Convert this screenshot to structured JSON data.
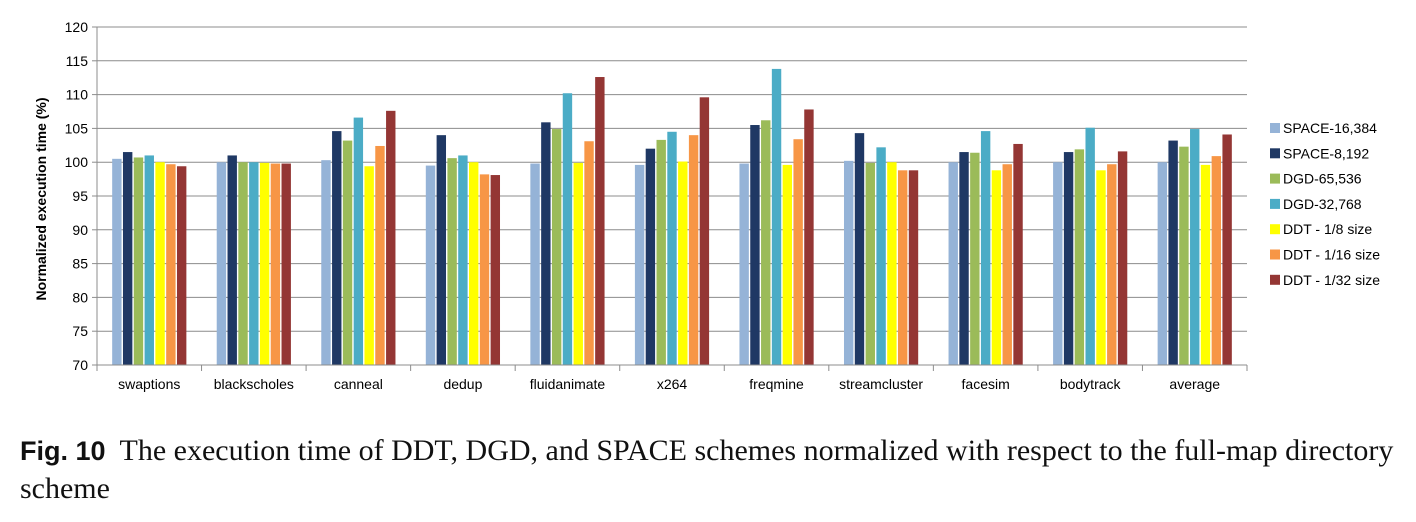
{
  "chart_data": {
    "type": "bar",
    "title": "",
    "xlabel": "",
    "ylabel": "Normalized execution time (%)",
    "ylim": [
      70,
      120
    ],
    "yticks": [
      70,
      75,
      80,
      85,
      90,
      95,
      100,
      105,
      110,
      115,
      120
    ],
    "grid": true,
    "legend_position": "right",
    "categories": [
      "swaptions",
      "blackscholes",
      "canneal",
      "dedup",
      "fluidanimate",
      "x264",
      "freqmine",
      "streamcluster",
      "facesim",
      "bodytrack",
      "average"
    ],
    "series": [
      {
        "name": "SPACE-16,384",
        "color": "#95B3D7",
        "values": [
          100.5,
          100.0,
          100.3,
          99.5,
          99.8,
          99.6,
          99.8,
          100.2,
          100.0,
          100.0,
          100.0
        ]
      },
      {
        "name": "SPACE-8,192",
        "color": "#1F3864",
        "values": [
          101.5,
          101.0,
          104.6,
          104.0,
          105.9,
          102.0,
          105.5,
          104.3,
          101.5,
          101.5,
          103.2
        ]
      },
      {
        "name": "DGD-65,536",
        "color": "#9BBB59",
        "values": [
          100.7,
          100.0,
          103.2,
          100.6,
          104.9,
          103.3,
          106.2,
          99.9,
          101.4,
          101.9,
          102.3
        ]
      },
      {
        "name": "DGD-32,768",
        "color": "#4BACC6",
        "values": [
          101.0,
          100.0,
          106.6,
          101.0,
          110.2,
          104.5,
          113.8,
          102.2,
          104.6,
          105.1,
          104.9
        ]
      },
      {
        "name": "DDT - 1/8 size",
        "color": "#FFFF00",
        "values": [
          100.0,
          99.9,
          99.4,
          100.0,
          99.9,
          100.1,
          99.6,
          100.0,
          98.8,
          98.8,
          99.6
        ]
      },
      {
        "name": "DDT - 1/16 size",
        "color": "#F79646",
        "values": [
          99.7,
          99.8,
          102.4,
          98.2,
          103.1,
          104.0,
          103.4,
          98.8,
          99.7,
          99.7,
          100.9
        ]
      },
      {
        "name": "DDT - 1/32 size",
        "color": "#943634",
        "values": [
          99.4,
          99.8,
          107.6,
          98.1,
          112.6,
          109.6,
          107.8,
          98.8,
          102.7,
          101.6,
          104.1
        ]
      }
    ]
  },
  "caption": {
    "label": "Fig. 10",
    "text": "The execution time of DDT, DGD, and SPACE schemes normalized with respect to the full-map directory scheme"
  }
}
